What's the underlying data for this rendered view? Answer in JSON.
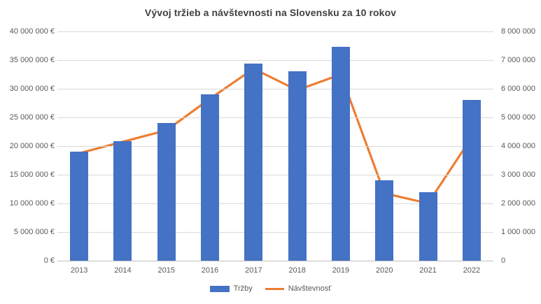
{
  "title": "Vývoj tržieb a návštevnosti na Slovensku za 10 rokov",
  "colors": {
    "bar": "#4472c4",
    "line": "#ed7d31",
    "gridline": "#d9d9d9",
    "axis_line": "#bfbfbf",
    "axis_text": "#595959",
    "title_text": "#404040"
  },
  "chart_data": {
    "type": "bar",
    "subtype": "combo-bar-line-dual-axis",
    "title": "Vývoj tržieb a návštevnosti na Slovensku za 10 rokov",
    "categories": [
      "2013",
      "2014",
      "2015",
      "2016",
      "2017",
      "2018",
      "2019",
      "2020",
      "2021",
      "2022"
    ],
    "series": [
      {
        "name": "Tržby",
        "type": "bar",
        "axis": "left",
        "color": "#4472c4",
        "values": [
          19000000,
          20800000,
          24000000,
          29000000,
          34400000,
          33000000,
          37300000,
          14000000,
          12000000,
          28000000
        ]
      },
      {
        "name": "Návštevnosť",
        "type": "line",
        "axis": "right",
        "color": "#ed7d31",
        "values": [
          3750000,
          4150000,
          4550000,
          5650000,
          6700000,
          5950000,
          6500000,
          2350000,
          2000000,
          4300000
        ]
      }
    ],
    "left_axis": {
      "min": 0,
      "max": 40000000,
      "step": 5000000,
      "tick_labels": [
        "40 000 000 €",
        "35 000 000 €",
        "30 000 000 €",
        "25 000 000 €",
        "20 000 000 €",
        "15 000 000 €",
        "10 000 000 €",
        "5 000 000 €",
        "0 €"
      ]
    },
    "right_axis": {
      "min": 0,
      "max": 8000000,
      "step": 1000000,
      "tick_labels": [
        "8 000 000",
        "7 000 000",
        "6 000 000",
        "5 000 000",
        "4 000 000",
        "3 000 000",
        "2 000 000",
        "1 000 000",
        "0"
      ]
    },
    "grid": true,
    "legend_position": "bottom"
  }
}
